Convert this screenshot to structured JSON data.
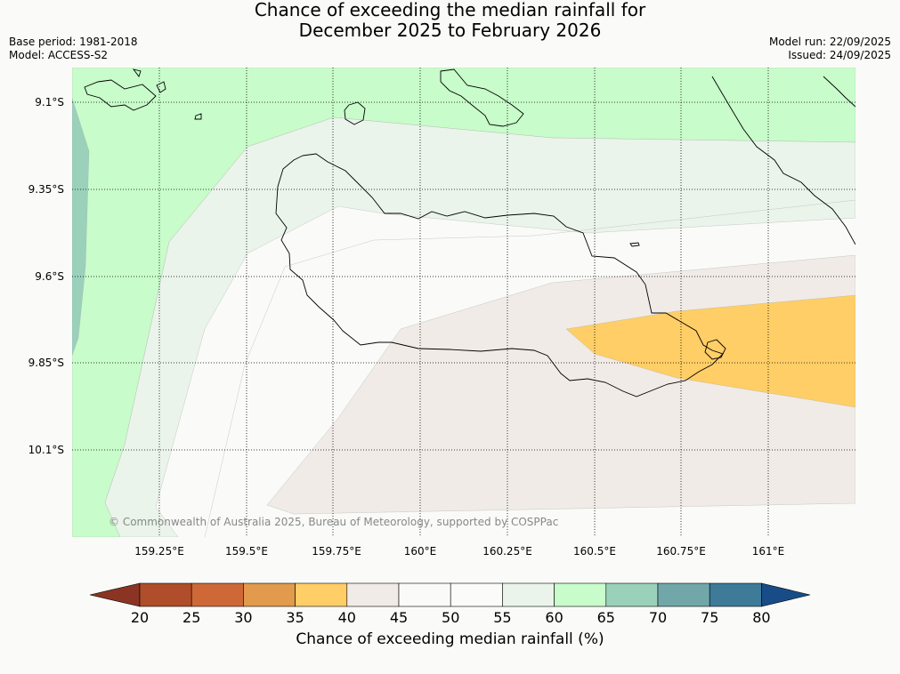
{
  "title": {
    "line1": "Chance of exceeding the median rainfall for",
    "line2": "December 2025 to February 2026"
  },
  "meta_left": {
    "base_period": "Base period: 1981-2018",
    "model": "Model: ACCESS-S2"
  },
  "meta_right": {
    "model_run": "Model run: 22/09/2025",
    "issued": "Issued: 24/09/2025"
  },
  "lat_labels": [
    "9.1°S",
    "9.35°S",
    "9.6°S",
    "9.85°S",
    "10.1°S"
  ],
  "lon_labels": [
    "159.25°E",
    "159.5°E",
    "159.75°E",
    "160°E",
    "160.25°E",
    "160.5°E",
    "160.75°E",
    "161°E"
  ],
  "copyright": "© Commonwealth of Australia 2025, Bureau of Meteorology, supported by COSPPac",
  "colorbar": {
    "label": "Chance of exceeding median rainfall (%)",
    "ticks": [
      "20",
      "25",
      "30",
      "35",
      "40",
      "45",
      "50",
      "55",
      "60",
      "65",
      "70",
      "75",
      "80"
    ],
    "colors": [
      "#8c3423",
      "#b04d2a",
      "#cf6837",
      "#e29a4c",
      "#ffce66",
      "#f0ebe6",
      "#fafbf8",
      "#fbfcfa",
      "#eaf4ea",
      "#c8fcca",
      "#9bd1bb",
      "#71a7a8",
      "#3d7b99",
      "#174c87"
    ]
  },
  "legend_colors": {
    "c35_40": "#ffce66",
    "c40_45": "#f0ebe6",
    "c45_55": "#fafbf8",
    "c55_60": "#eaf4ea",
    "c60_65": "#c8fcca",
    "c65_70": "#9bd1bb"
  }
}
